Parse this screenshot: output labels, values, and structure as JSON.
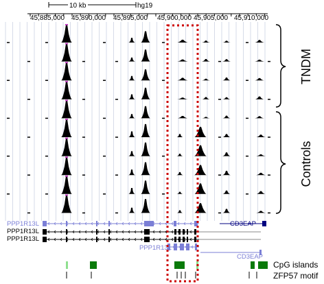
{
  "header": {
    "scale_label": "10 kb",
    "assembly": "hg19",
    "positions": [
      "45,885,000",
      "45,890,000",
      "45,895,000",
      "45,900,000",
      "45,905,000",
      "45,910,000"
    ]
  },
  "groups": {
    "tndm": "TNDM",
    "controls": "Controls"
  },
  "genes": {
    "ppp1r13l": "PPP1R13L",
    "cd3eap": "CD3EAP",
    "ppp1r13l_lower": "PPP1R13L",
    "cd3eap_lower": "CD3EAP"
  },
  "tracks": {
    "cpg": "CpG islands",
    "zfp57": "ZFP57 motif"
  },
  "colors": {
    "signal": "#000000",
    "peak_top": "#c040c0",
    "gene": "#7b7fd6",
    "gene_dark": "#000000",
    "cd3eap": "#000080",
    "cpg": "#0a7a0a",
    "cpg_light": "#8fe08f",
    "highlight": "#cc0000",
    "gridline": "#d6dbe8"
  }
}
